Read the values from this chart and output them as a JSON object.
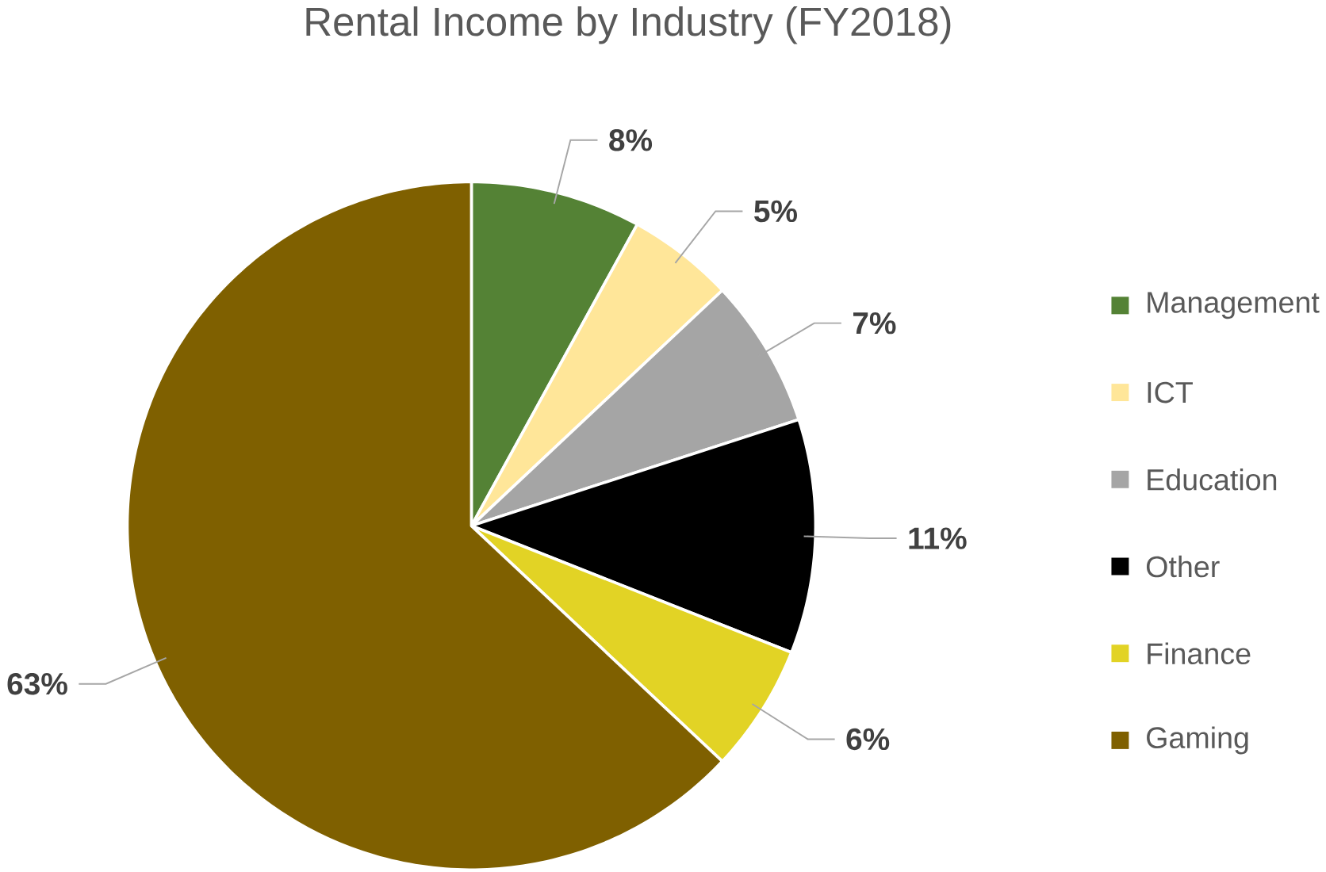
{
  "chart_data": {
    "type": "pie",
    "title": "Rental Income by Industry (FY2018)",
    "categories": [
      "Management",
      "ICT",
      "Education",
      "Other",
      "Finance",
      "Gaming"
    ],
    "values": [
      8,
      5,
      7,
      11,
      6,
      63
    ],
    "colors": [
      "#548235",
      "#ffe699",
      "#a5a5a5",
      "#000000",
      "#e2d325",
      "#7f6000"
    ],
    "value_labels": [
      "8%",
      "5%",
      "7%",
      "11%",
      "6%",
      "63%"
    ],
    "legend": "right"
  }
}
